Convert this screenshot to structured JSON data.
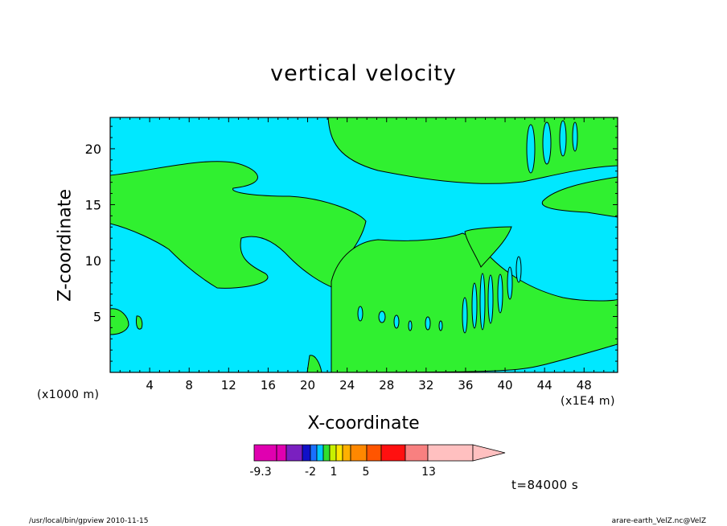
{
  "chart_data": {
    "type": "contour",
    "title": "vertical velocity",
    "xlabel": "X-coordinate",
    "ylabel": "Z-coordinate",
    "x_multiplier_left": "(x1000 m)",
    "x_multiplier_right": "(x1E4 m)",
    "xlim": [
      0,
      51.4
    ],
    "ylim": [
      0,
      22.8
    ],
    "x_ticks": [
      4,
      8,
      12,
      16,
      20,
      24,
      28,
      32,
      36,
      40,
      44,
      48
    ],
    "y_ticks": [
      5,
      10,
      15,
      20
    ],
    "colorbar": {
      "labels": [
        "-9.3",
        "-2",
        "1",
        "5",
        "13"
      ],
      "colors": [
        "#e000b0",
        "#e000b0",
        "#7a20c0",
        "#1010c8",
        "#1a70ff",
        "#00c8ff",
        "#30e030",
        "#c8f000",
        "#ffe600",
        "#ffb000",
        "#ff8800",
        "#ff5500",
        "#ff1010",
        "#f88080",
        "#ffc0c0",
        "#ffc0c0"
      ],
      "label_positions": [
        0,
        4,
        6,
        9,
        14
      ]
    },
    "regions": {
      "background_color": "#00e8ff",
      "positive_color": "#30f030"
    },
    "time_label": "t=84000 s"
  },
  "footer": {
    "left": "/usr/local/bin/gpview  2010-11-15",
    "right": "arare-earth_VelZ.nc@VelZ"
  }
}
